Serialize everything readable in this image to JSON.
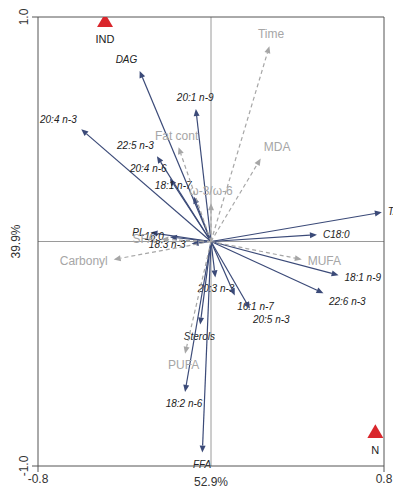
{
  "chart_data": {
    "type": "biplot",
    "x_label": "52.9%",
    "y_label": "39.9%",
    "xlim": [
      -0.8,
      0.8
    ],
    "ylim": [
      -1,
      1
    ],
    "xticks": [
      -0.8,
      0.8
    ],
    "yticks": [
      {
        "value": -1,
        "label": "-1.0"
      },
      {
        "value": 1,
        "label": "1.0"
      }
    ],
    "series": [
      {
        "color": "#3b4a78",
        "line_style": "solid",
        "vectors": [
          {
            "label": "DAG",
            "x": -0.33,
            "y": 0.76
          },
          {
            "label": "20:1 n-9",
            "x": -0.07,
            "y": 0.59
          },
          {
            "label": "20:4 n-3",
            "x": -0.6,
            "y": 0.5
          },
          {
            "label": "22:5 n-3",
            "x": -0.25,
            "y": 0.38
          },
          {
            "label": "20:4 n-6",
            "x": -0.19,
            "y": 0.28
          },
          {
            "label": "18:1 n-7",
            "x": -0.08,
            "y": 0.2
          },
          {
            "label": "PL",
            "x": -0.28,
            "y": 0.04
          },
          {
            "label": "16:0",
            "x": -0.19,
            "y": 0.02
          },
          {
            "label": "18:3 n-3",
            "x": -0.09,
            "y": -0.01
          },
          {
            "label": "TAG",
            "x": 0.79,
            "y": 0.13
          },
          {
            "label": "C18:0",
            "x": 0.49,
            "y": 0.03
          },
          {
            "label": "18:1 n-9",
            "x": 0.59,
            "y": -0.15
          },
          {
            "label": "22:6 n-3",
            "x": 0.52,
            "y": -0.23
          },
          {
            "label": "20:3 n-3",
            "x": 0.02,
            "y": -0.16
          },
          {
            "label": "16:1 n-7",
            "x": 0.11,
            "y": -0.24
          },
          {
            "label": "20:5 n-3",
            "x": 0.18,
            "y": -0.3
          },
          {
            "label": "Sterols",
            "x": -0.05,
            "y": -0.37
          },
          {
            "label": "18:2 n-6",
            "x": -0.12,
            "y": -0.67
          },
          {
            "label": "FFA",
            "x": -0.04,
            "y": -0.94
          }
        ]
      },
      {
        "color": "#a6a6a6",
        "line_style": "dashed",
        "vectors": [
          {
            "label": "Time",
            "x": 0.27,
            "y": 0.87
          },
          {
            "label": "Fat cont",
            "x": -0.15,
            "y": 0.42
          },
          {
            "label": "MDA",
            "x": 0.23,
            "y": 0.37
          },
          {
            "label": "ω-3/ω-6",
            "x": 0.0,
            "y": 0.17
          },
          {
            "label": "SFA",
            "x": -0.23,
            "y": 0.01
          },
          {
            "label": "Carbonyl",
            "x": -0.45,
            "y": -0.08
          },
          {
            "label": "MUFA",
            "x": 0.42,
            "y": -0.08
          },
          {
            "label": "PUFA",
            "x": -0.12,
            "y": -0.5
          }
        ]
      }
    ],
    "samples": {
      "color": "#d9262c",
      "marker": "triangle",
      "points": [
        {
          "label": "IND",
          "x": -0.49,
          "y": 0.98
        },
        {
          "label": "N",
          "x": 0.76,
          "y": -0.85
        }
      ]
    }
  }
}
